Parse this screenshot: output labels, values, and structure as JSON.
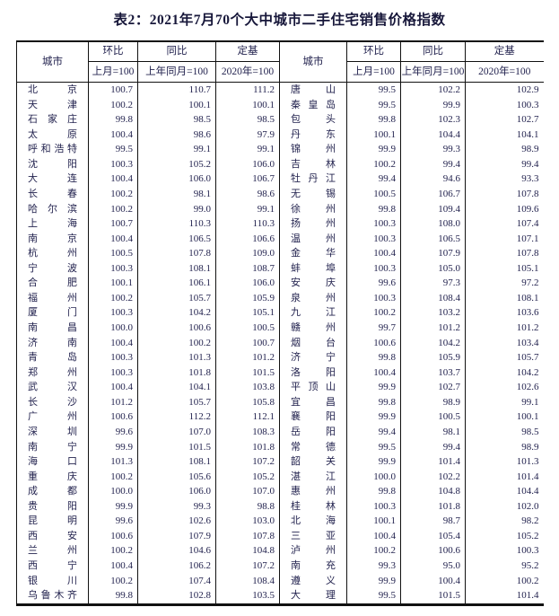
{
  "title": "表2：2021年7月70个大中城市二手住宅销售价格指数",
  "table": {
    "headers": {
      "city": "城市",
      "mom": "环比",
      "mom_base": "上月=100",
      "yoy": "同比",
      "yoy_base": "上年同月=100",
      "fixed": "定基",
      "fixed_base": "2020年=100"
    },
    "left_rows": [
      {
        "city": "北京",
        "mom": "100.7",
        "yoy": "110.7",
        "fixed": "111.2"
      },
      {
        "city": "天津",
        "mom": "100.2",
        "yoy": "100.1",
        "fixed": "100.1"
      },
      {
        "city": "石家庄",
        "mom": "99.8",
        "yoy": "98.5",
        "fixed": "98.5"
      },
      {
        "city": "太原",
        "mom": "100.4",
        "yoy": "98.6",
        "fixed": "97.9"
      },
      {
        "city": "呼和浩特",
        "mom": "99.5",
        "yoy": "99.1",
        "fixed": "99.1"
      },
      {
        "city": "沈阳",
        "mom": "100.3",
        "yoy": "105.2",
        "fixed": "106.0"
      },
      {
        "city": "大连",
        "mom": "100.4",
        "yoy": "106.0",
        "fixed": "106.7"
      },
      {
        "city": "长春",
        "mom": "100.2",
        "yoy": "98.1",
        "fixed": "98.6"
      },
      {
        "city": "哈尔滨",
        "mom": "100.2",
        "yoy": "99.0",
        "fixed": "99.1"
      },
      {
        "city": "上海",
        "mom": "100.7",
        "yoy": "110.3",
        "fixed": "110.3"
      },
      {
        "city": "南京",
        "mom": "100.4",
        "yoy": "106.5",
        "fixed": "106.6"
      },
      {
        "city": "杭州",
        "mom": "100.5",
        "yoy": "107.8",
        "fixed": "109.0"
      },
      {
        "city": "宁波",
        "mom": "100.3",
        "yoy": "108.1",
        "fixed": "108.7"
      },
      {
        "city": "合肥",
        "mom": "100.1",
        "yoy": "106.1",
        "fixed": "106.0"
      },
      {
        "city": "福州",
        "mom": "100.2",
        "yoy": "105.7",
        "fixed": "105.9"
      },
      {
        "city": "厦门",
        "mom": "100.3",
        "yoy": "104.2",
        "fixed": "105.1"
      },
      {
        "city": "南昌",
        "mom": "100.0",
        "yoy": "100.6",
        "fixed": "100.5"
      },
      {
        "city": "济南",
        "mom": "100.4",
        "yoy": "100.2",
        "fixed": "100.7"
      },
      {
        "city": "青岛",
        "mom": "100.3",
        "yoy": "101.3",
        "fixed": "101.2"
      },
      {
        "city": "郑州",
        "mom": "100.3",
        "yoy": "101.8",
        "fixed": "101.5"
      },
      {
        "city": "武汉",
        "mom": "100.4",
        "yoy": "104.1",
        "fixed": "103.8"
      },
      {
        "city": "长沙",
        "mom": "101.2",
        "yoy": "105.7",
        "fixed": "105.8"
      },
      {
        "city": "广州",
        "mom": "100.6",
        "yoy": "112.2",
        "fixed": "112.1"
      },
      {
        "city": "深圳",
        "mom": "99.6",
        "yoy": "107.0",
        "fixed": "108.3"
      },
      {
        "city": "南宁",
        "mom": "99.9",
        "yoy": "101.5",
        "fixed": "101.8"
      },
      {
        "city": "海口",
        "mom": "101.3",
        "yoy": "108.1",
        "fixed": "107.2"
      },
      {
        "city": "重庆",
        "mom": "100.2",
        "yoy": "105.6",
        "fixed": "105.2"
      },
      {
        "city": "成都",
        "mom": "100.0",
        "yoy": "106.0",
        "fixed": "107.0"
      },
      {
        "city": "贵阳",
        "mom": "99.9",
        "yoy": "99.3",
        "fixed": "98.8"
      },
      {
        "city": "昆明",
        "mom": "99.6",
        "yoy": "102.6",
        "fixed": "103.0"
      },
      {
        "city": "西安",
        "mom": "100.6",
        "yoy": "107.9",
        "fixed": "107.8"
      },
      {
        "city": "兰州",
        "mom": "100.2",
        "yoy": "104.6",
        "fixed": "104.8"
      },
      {
        "city": "西宁",
        "mom": "100.4",
        "yoy": "106.2",
        "fixed": "107.2"
      },
      {
        "city": "银川",
        "mom": "100.2",
        "yoy": "107.4",
        "fixed": "108.4"
      },
      {
        "city": "乌鲁木齐",
        "mom": "99.8",
        "yoy": "102.8",
        "fixed": "103.5"
      }
    ],
    "right_rows": [
      {
        "city": "唐山",
        "mom": "99.5",
        "yoy": "102.2",
        "fixed": "102.9"
      },
      {
        "city": "秦皇岛",
        "mom": "99.5",
        "yoy": "99.9",
        "fixed": "100.3"
      },
      {
        "city": "包头",
        "mom": "99.8",
        "yoy": "102.3",
        "fixed": "102.7"
      },
      {
        "city": "丹东",
        "mom": "100.1",
        "yoy": "104.4",
        "fixed": "104.1"
      },
      {
        "city": "锦州",
        "mom": "99.9",
        "yoy": "99.3",
        "fixed": "98.9"
      },
      {
        "city": "吉林",
        "mom": "100.2",
        "yoy": "99.4",
        "fixed": "99.4"
      },
      {
        "city": "牡丹江",
        "mom": "99.4",
        "yoy": "94.6",
        "fixed": "93.3"
      },
      {
        "city": "无锡",
        "mom": "100.5",
        "yoy": "106.7",
        "fixed": "107.8"
      },
      {
        "city": "徐州",
        "mom": "99.8",
        "yoy": "109.4",
        "fixed": "109.6"
      },
      {
        "city": "扬州",
        "mom": "100.3",
        "yoy": "108.0",
        "fixed": "107.4"
      },
      {
        "city": "温州",
        "mom": "100.3",
        "yoy": "106.5",
        "fixed": "107.1"
      },
      {
        "city": "金华",
        "mom": "100.4",
        "yoy": "107.9",
        "fixed": "107.8"
      },
      {
        "city": "蚌埠",
        "mom": "100.3",
        "yoy": "105.0",
        "fixed": "105.1"
      },
      {
        "city": "安庆",
        "mom": "99.6",
        "yoy": "97.3",
        "fixed": "97.2"
      },
      {
        "city": "泉州",
        "mom": "100.3",
        "yoy": "108.4",
        "fixed": "108.1"
      },
      {
        "city": "九江",
        "mom": "100.2",
        "yoy": "103.2",
        "fixed": "103.6"
      },
      {
        "city": "赣州",
        "mom": "99.7",
        "yoy": "101.2",
        "fixed": "101.2"
      },
      {
        "city": "烟台",
        "mom": "100.6",
        "yoy": "104.2",
        "fixed": "103.4"
      },
      {
        "city": "济宁",
        "mom": "99.8",
        "yoy": "105.9",
        "fixed": "105.7"
      },
      {
        "city": "洛阳",
        "mom": "100.4",
        "yoy": "103.7",
        "fixed": "104.2"
      },
      {
        "city": "平顶山",
        "mom": "99.9",
        "yoy": "102.7",
        "fixed": "102.6"
      },
      {
        "city": "宜昌",
        "mom": "99.8",
        "yoy": "98.9",
        "fixed": "99.1"
      },
      {
        "city": "襄阳",
        "mom": "99.9",
        "yoy": "100.5",
        "fixed": "100.1"
      },
      {
        "city": "岳阳",
        "mom": "99.4",
        "yoy": "98.1",
        "fixed": "98.5"
      },
      {
        "city": "常德",
        "mom": "99.5",
        "yoy": "99.4",
        "fixed": "98.9"
      },
      {
        "city": "韶关",
        "mom": "99.9",
        "yoy": "101.4",
        "fixed": "101.3"
      },
      {
        "city": "湛江",
        "mom": "100.0",
        "yoy": "102.2",
        "fixed": "101.4"
      },
      {
        "city": "惠州",
        "mom": "99.8",
        "yoy": "104.8",
        "fixed": "104.4"
      },
      {
        "city": "桂林",
        "mom": "100.3",
        "yoy": "101.8",
        "fixed": "102.0"
      },
      {
        "city": "北海",
        "mom": "100.1",
        "yoy": "98.7",
        "fixed": "98.2"
      },
      {
        "city": "三亚",
        "mom": "100.4",
        "yoy": "105.4",
        "fixed": "105.2"
      },
      {
        "city": "泸州",
        "mom": "100.2",
        "yoy": "100.6",
        "fixed": "100.3"
      },
      {
        "city": "南充",
        "mom": "99.3",
        "yoy": "95.0",
        "fixed": "95.2"
      },
      {
        "city": "遵义",
        "mom": "99.9",
        "yoy": "100.4",
        "fixed": "100.2"
      },
      {
        "city": "大理",
        "mom": "99.5",
        "yoy": "101.5",
        "fixed": "101.4"
      }
    ]
  }
}
